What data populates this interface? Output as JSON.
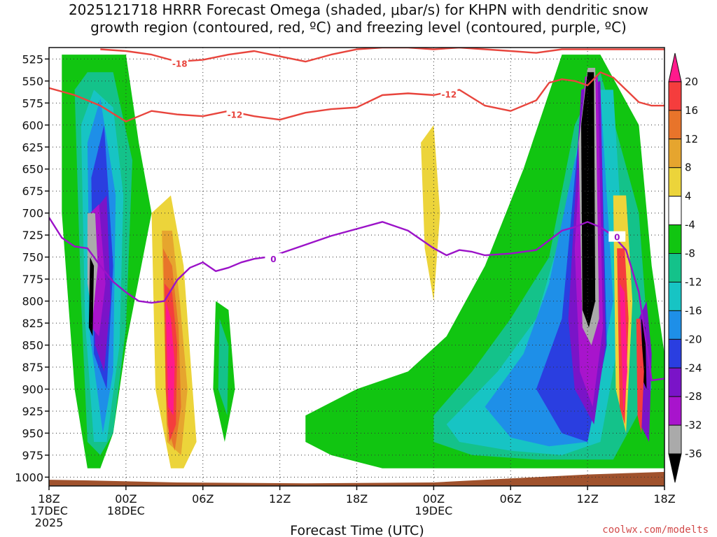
{
  "chart_data": {
    "type": "heatmap",
    "title": "2025121718 HRRR Forecast Omega (shaded, μbar/s) for KHPN with dendritic snow\ngrowth region (contoured, red, ºC) and freezing level (contoured, purple, ºC)",
    "xlabel": "Forecast Time (UTC)",
    "ylabel": "",
    "credit": "coolwx.com/modelts",
    "y_levels": [
      525,
      550,
      575,
      600,
      625,
      650,
      675,
      700,
      725,
      750,
      775,
      800,
      825,
      850,
      875,
      900,
      925,
      950,
      975,
      1000
    ],
    "ylim": [
      1010,
      512
    ],
    "x_ticks": [
      {
        "hour": 0,
        "label": "18Z",
        "date": "17DEC",
        "year": "2025"
      },
      {
        "hour": 6,
        "label": "00Z",
        "date": "18DEC",
        "year": ""
      },
      {
        "hour": 12,
        "label": "06Z",
        "date": "",
        "year": ""
      },
      {
        "hour": 18,
        "label": "12Z",
        "date": "",
        "year": ""
      },
      {
        "hour": 24,
        "label": "18Z",
        "date": "",
        "year": ""
      },
      {
        "hour": 30,
        "label": "00Z",
        "date": "19DEC",
        "year": ""
      },
      {
        "hour": 36,
        "label": "06Z",
        "date": "",
        "year": ""
      },
      {
        "hour": 42,
        "label": "12Z",
        "date": "",
        "year": ""
      },
      {
        "hour": 48,
        "label": "18Z",
        "date": "",
        "year": ""
      }
    ],
    "xlim": [
      0,
      48
    ],
    "grid": true,
    "colorbar": {
      "labels": [
        "20",
        "16",
        "12",
        "8",
        "4",
        "-4",
        "-8",
        "-12",
        "-16",
        "-20",
        "-24",
        "-28",
        "-32",
        "-36"
      ],
      "colors": [
        "#ff1a8c",
        "#f53d3d",
        "#e8742a",
        "#e6a52e",
        "#ecd43a",
        "#ffffff",
        "#11c511",
        "#14c28a",
        "#17c4c4",
        "#1e8fe8",
        "#2a3ee0",
        "#7a14c8",
        "#a814cc",
        "#aaaaaa",
        "#000000"
      ]
    },
    "shading_regions": [
      {
        "value": -8,
        "color": "#11c511",
        "x": [
          1,
          2,
          4,
          6,
          7,
          8,
          6,
          5,
          4,
          3,
          2,
          1
        ],
        "p": [
          520,
          520,
          520,
          520,
          620,
          700,
          850,
          950,
          990,
          990,
          900,
          700
        ]
      },
      {
        "value": -12,
        "color": "#14c28a",
        "x": [
          2,
          3,
          5,
          6.5,
          6,
          5,
          4,
          3,
          2.5
        ],
        "p": [
          560,
          540,
          540,
          640,
          830,
          950,
          975,
          960,
          800
        ]
      },
      {
        "value": -16,
        "color": "#17c4c4",
        "x": [
          2.5,
          3.5,
          5,
          5.8,
          5.5,
          4.5,
          3.5,
          2.8
        ],
        "p": [
          600,
          560,
          580,
          680,
          850,
          960,
          960,
          820
        ]
      },
      {
        "value": -20,
        "color": "#1e8fe8",
        "x": [
          3,
          4,
          5.2,
          5,
          4.2,
          3.2
        ],
        "p": [
          620,
          570,
          680,
          880,
          950,
          840
        ]
      },
      {
        "value": -24,
        "color": "#2a3ee0",
        "x": [
          3.3,
          4.3,
          5,
          4.5,
          3.5
        ],
        "p": [
          660,
          600,
          760,
          900,
          860
        ]
      },
      {
        "value": -28,
        "color": "#7a14c8",
        "x": [
          3.4,
          4.5,
          4.8,
          4.3,
          3.6
        ],
        "p": [
          700,
          680,
          800,
          880,
          850
        ]
      },
      {
        "value": -32,
        "color": "#a814cc",
        "x": [
          3.2,
          3.9,
          4.4,
          3.9,
          3.3
        ],
        "p": [
          700,
          690,
          780,
          840,
          830
        ]
      },
      {
        "value": -36,
        "color": "#aaaaaa",
        "x": [
          3.0,
          3.6,
          3.8,
          3.4,
          3.0
        ],
        "p": [
          700,
          700,
          760,
          820,
          780
        ]
      },
      {
        "value": -36,
        "color": "#000000",
        "x": [
          3.2,
          3.5,
          3.4,
          3.1
        ],
        "p": [
          750,
          760,
          840,
          830
        ]
      },
      {
        "value": -8,
        "color": "#11c511",
        "x": [
          13,
          14,
          14.5,
          13.7,
          12.8
        ],
        "p": [
          800,
          810,
          900,
          960,
          900
        ]
      },
      {
        "value": -12,
        "color": "#14c28a",
        "x": [
          13.3,
          14,
          13.9,
          13.2
        ],
        "p": [
          820,
          850,
          930,
          900
        ]
      },
      {
        "value": -8,
        "color": "#11c511",
        "x": [
          20,
          24,
          28,
          31,
          34,
          37,
          40,
          41,
          43,
          46,
          47,
          48,
          48,
          44,
          40,
          32,
          26,
          22,
          20
        ],
        "p": [
          930,
          900,
          880,
          840,
          760,
          650,
          520,
          520,
          520,
          600,
          760,
          860,
          990,
          990,
          990,
          990,
          990,
          975,
          960
        ]
      },
      {
        "value": -12,
        "color": "#14c28a",
        "x": [
          30,
          33,
          36,
          39,
          41,
          43,
          46,
          47,
          44,
          38,
          33,
          30
        ],
        "p": [
          930,
          880,
          820,
          750,
          600,
          540,
          700,
          900,
          980,
          980,
          975,
          960
        ]
      },
      {
        "value": -16,
        "color": "#17c4c4",
        "x": [
          31,
          35,
          38,
          40,
          42,
          44,
          45,
          43,
          40,
          36,
          32
        ],
        "p": [
          940,
          880,
          820,
          720,
          560,
          560,
          800,
          960,
          975,
          970,
          960
        ]
      },
      {
        "value": -20,
        "color": "#1e8fe8",
        "x": [
          34,
          37,
          39,
          41,
          43,
          44,
          42,
          39,
          36
        ],
        "p": [
          920,
          860,
          780,
          640,
          560,
          800,
          960,
          965,
          955
        ]
      },
      {
        "value": -24,
        "color": "#2a3ee0",
        "x": [
          38,
          40,
          41.5,
          43,
          43.5,
          42,
          40
        ],
        "p": [
          900,
          820,
          580,
          560,
          850,
          960,
          950
        ]
      },
      {
        "value": -28,
        "color": "#7a14c8",
        "x": [
          40.5,
          41.5,
          43,
          43.4,
          42.5,
          41
        ],
        "p": [
          820,
          560,
          550,
          850,
          940,
          900
        ]
      },
      {
        "value": -32,
        "color": "#a814cc",
        "x": [
          41,
          41.8,
          42.8,
          43.2,
          42.4,
          41.4
        ],
        "p": [
          740,
          545,
          545,
          830,
          920,
          880
        ]
      },
      {
        "value": -36,
        "color": "#aaaaaa",
        "x": [
          41.3,
          42,
          42.6,
          42.9,
          42.3,
          41.6
        ],
        "p": [
          620,
          535,
          535,
          820,
          850,
          830
        ]
      },
      {
        "value": -36,
        "color": "#000000",
        "x": [
          41.5,
          42,
          42.5,
          42.6,
          42.1,
          41.6
        ],
        "p": [
          600,
          540,
          540,
          800,
          830,
          810
        ]
      },
      {
        "value": -28,
        "color": "#7a14c8",
        "x": [
          46,
          46.6,
          47,
          46.8,
          46.1
        ],
        "p": [
          820,
          800,
          860,
          960,
          940
        ]
      },
      {
        "value": -36,
        "color": "#000000",
        "x": [
          46.2,
          46.5,
          46.6,
          46.3
        ],
        "p": [
          820,
          830,
          900,
          890
        ]
      },
      {
        "value": 4,
        "color": "#ecd43a",
        "x": [
          8,
          9.5,
          10.5,
          11,
          11.5,
          10.5,
          9.5,
          8.3
        ],
        "p": [
          700,
          680,
          760,
          860,
          960,
          990,
          990,
          900
        ]
      },
      {
        "value": 8,
        "color": "#e6a52e",
        "x": [
          8.8,
          9.6,
          10.2,
          10.8,
          10.3,
          9.2
        ],
        "p": [
          720,
          720,
          800,
          900,
          975,
          960
        ]
      },
      {
        "value": 12,
        "color": "#e8742a",
        "x": [
          8.9,
          9.6,
          10.1,
          10.3,
          9.8,
          9.2
        ],
        "p": [
          740,
          760,
          830,
          920,
          970,
          940
        ]
      },
      {
        "value": 16,
        "color": "#f53d3d",
        "x": [
          9,
          9.6,
          10,
          9.9,
          9.4,
          9.1
        ],
        "p": [
          780,
          790,
          850,
          940,
          960,
          900
        ]
      },
      {
        "value": 20,
        "color": "#ff1a8c",
        "x": [
          9.1,
          9.5,
          9.8,
          9.7,
          9.3
        ],
        "p": [
          800,
          820,
          870,
          930,
          920
        ]
      },
      {
        "value": 4,
        "color": "#ecd43a",
        "x": [
          29,
          30,
          30.5,
          30,
          29.3
        ],
        "p": [
          620,
          600,
          700,
          800,
          740
        ]
      },
      {
        "value": 4,
        "color": "#ecd43a",
        "x": [
          44,
          45,
          45.5,
          45,
          44.2
        ],
        "p": [
          680,
          680,
          800,
          950,
          900
        ]
      },
      {
        "value": 16,
        "color": "#f53d3d",
        "x": [
          44.3,
          44.9,
          45.2,
          44.9,
          44.5
        ],
        "p": [
          740,
          740,
          820,
          940,
          920
        ]
      },
      {
        "value": 20,
        "color": "#ff1a8c",
        "x": [
          44.5,
          44.9,
          45.1,
          44.8
        ],
        "p": [
          780,
          790,
          880,
          930
        ]
      },
      {
        "value": 16,
        "color": "#f53d3d",
        "x": [
          45.8,
          46.1,
          46.4,
          46.2,
          45.9
        ],
        "p": [
          820,
          820,
          880,
          950,
          930
        ]
      }
    ],
    "contours": [
      {
        "name": "-18",
        "color": "#e8453d",
        "label_x": 10.2,
        "label_p": 530,
        "x": [
          4,
          6,
          8,
          10,
          12,
          14,
          16,
          18,
          20,
          22,
          24,
          26,
          28,
          30,
          32,
          34,
          36,
          38,
          40,
          42,
          44,
          46,
          48
        ],
        "p": [
          514,
          516,
          520,
          528,
          526,
          520,
          516,
          522,
          528,
          520,
          514,
          512,
          512,
          514,
          512,
          514,
          516,
          518,
          514,
          514,
          514,
          514,
          514
        ]
      },
      {
        "name": "-12",
        "color": "#e8453d",
        "label_x": 14.5,
        "label_p": 588,
        "label2_x": 31.2,
        "label2_p": 565,
        "x": [
          0,
          2,
          4,
          6,
          8,
          10,
          12,
          14,
          16,
          18,
          20,
          22,
          24,
          26,
          28,
          30,
          32,
          34,
          36,
          38,
          39,
          40,
          41,
          42,
          43,
          44,
          45,
          46,
          47,
          48
        ],
        "p": [
          558,
          566,
          578,
          596,
          584,
          588,
          590,
          584,
          590,
          594,
          586,
          582,
          580,
          566,
          564,
          566,
          560,
          578,
          584,
          572,
          552,
          548,
          550,
          555,
          540,
          546,
          560,
          574,
          578,
          578
        ]
      },
      {
        "name": "0",
        "color": "#9b12c8",
        "label_x": 17.5,
        "label_p": 752,
        "label2_x": 44.3,
        "label2_p": 727,
        "x": [
          0,
          1,
          2,
          3,
          4,
          5,
          6,
          7,
          8,
          9,
          10,
          11,
          12,
          13,
          14,
          15,
          16,
          17,
          18,
          20,
          22,
          24,
          26,
          28,
          30,
          31,
          32,
          33,
          34,
          36,
          38,
          40,
          41,
          42,
          43,
          44,
          45,
          46,
          47,
          48
        ],
        "p": [
          705,
          728,
          738,
          740,
          760,
          778,
          790,
          800,
          802,
          800,
          776,
          762,
          756,
          766,
          762,
          756,
          752,
          750,
          746,
          736,
          726,
          718,
          710,
          720,
          740,
          748,
          742,
          744,
          748,
          746,
          742,
          720,
          716,
          710,
          716,
          726,
          742,
          790,
          890,
          888
        ]
      }
    ]
  }
}
